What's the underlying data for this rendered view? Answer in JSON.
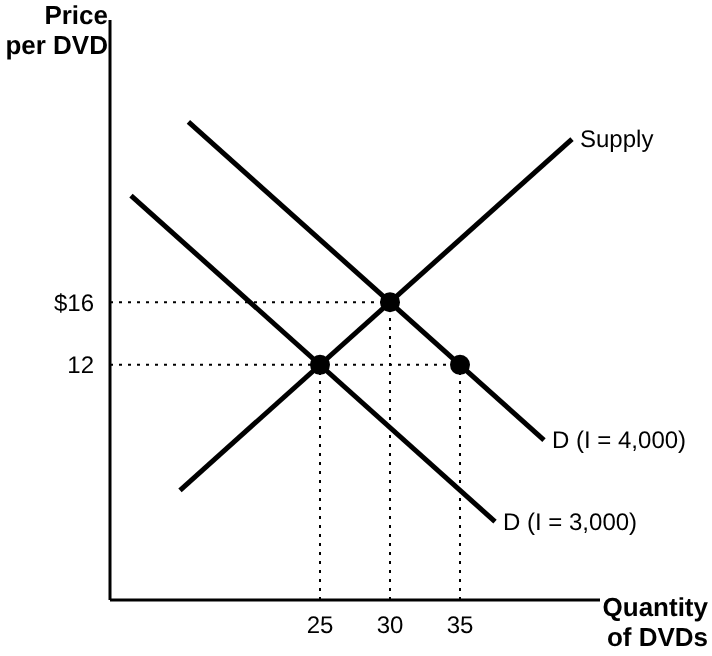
{
  "chart_data": {
    "type": "line",
    "xlabel": "Quantity of DVDs",
    "ylabel": "Price per DVD",
    "xlim": [
      10,
      45
    ],
    "ylim": [
      -3,
      34
    ],
    "xticks": [
      25,
      30,
      35
    ],
    "yticks": [
      12,
      {
        "value": 16,
        "label": "$16"
      }
    ],
    "grid": false,
    "legend": false,
    "marker": "none",
    "series": [
      {
        "name": "Supply",
        "color": "#000000",
        "x": [
          15,
          43
        ],
        "values": [
          4,
          26.4
        ]
      },
      {
        "name": "D (I = 3,000)",
        "color": "#000000",
        "x": [
          11.5,
          37.5
        ],
        "values": [
          22.8,
          2
        ]
      },
      {
        "name": "D (I = 4,000)",
        "color": "#000000",
        "x": [
          15.6,
          41
        ],
        "values": [
          27.5,
          7.2
        ]
      },
      {
        "color": "#000000",
        "line_style": "dotted",
        "x": [
          10,
          30
        ],
        "values": [
          16,
          16
        ]
      },
      {
        "color": "#000000",
        "line_style": "dotted",
        "x": [
          10,
          35
        ],
        "values": [
          12,
          12
        ]
      },
      {
        "color": "#000000",
        "line_style": "dotted",
        "x": [
          25,
          25
        ],
        "values": [
          -3,
          12
        ]
      },
      {
        "color": "#000000",
        "line_style": "dotted",
        "x": [
          30,
          30
        ],
        "values": [
          -3,
          16
        ]
      },
      {
        "color": "#000000",
        "line_style": "dotted",
        "x": [
          35,
          35
        ],
        "values": [
          -3,
          12
        ]
      },
      {
        "type": "scatter",
        "color": "#000000",
        "marker": "circle",
        "x": [
          25,
          30,
          35
        ],
        "values": [
          12,
          16,
          12
        ]
      }
    ]
  }
}
